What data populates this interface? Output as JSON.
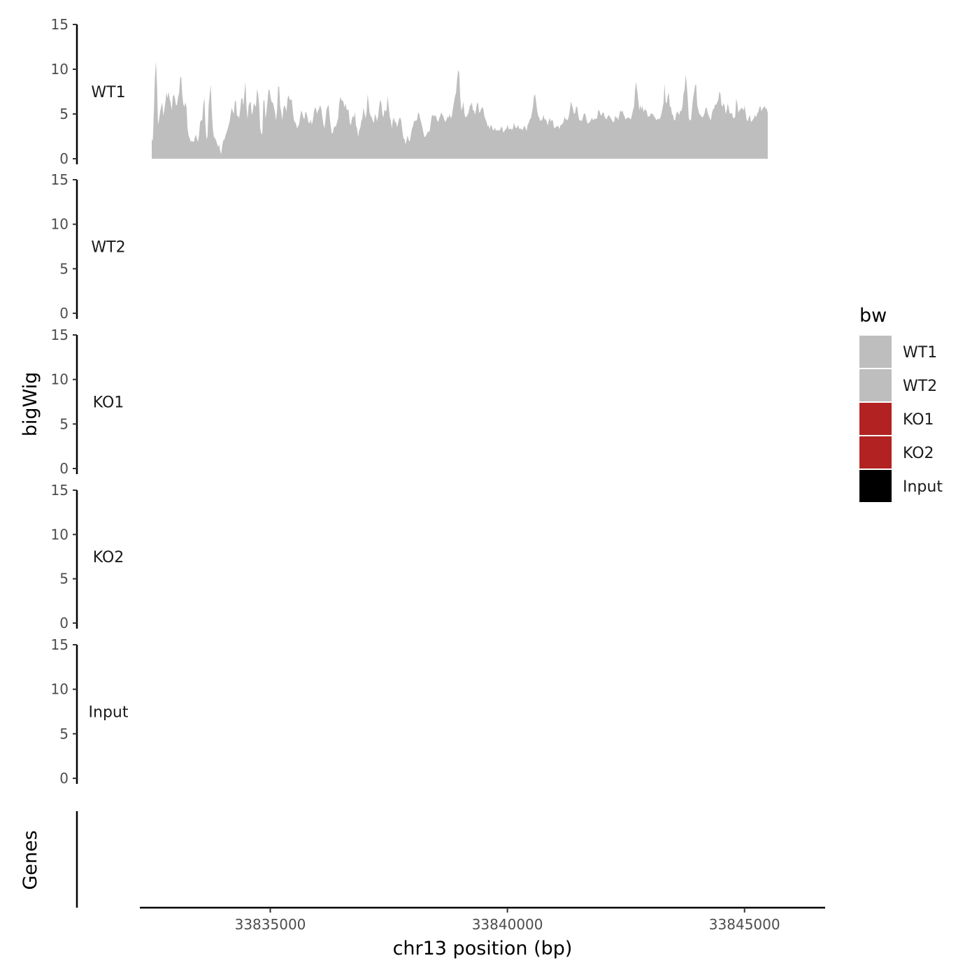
{
  "chart_data": {
    "type": "area",
    "chromosome": "chr13",
    "ylabel": "bigWig",
    "xlabel": "chr13 position (bp)",
    "genes_label": "Genes",
    "ylim": [
      0,
      15
    ],
    "yticks": [
      0,
      5,
      10,
      15
    ],
    "xlim": [
      33832250,
      33846700
    ],
    "xticks": [
      33835000,
      33840000,
      33845000
    ],
    "xtick_labels": [
      "33835000",
      "33840000",
      "33845000"
    ],
    "legend": {
      "title": "bw",
      "entries": [
        {
          "label": "WT1",
          "color": "#bebebe"
        },
        {
          "label": "WT2",
          "color": "#bebebe"
        },
        {
          "label": "KO1",
          "color": "#b22222"
        },
        {
          "label": "KO2",
          "color": "#b22222"
        },
        {
          "label": "Input",
          "color": "#000000"
        }
      ]
    },
    "series": [
      {
        "name": "WT1",
        "color": "#bebebe",
        "x_start": 33832500,
        "x_end": 33845490,
        "values": [
          2.2,
          2.0,
          5.2,
          9.0,
          10.9,
          8.3,
          3.8,
          4.4,
          5.3,
          5.8,
          6.3,
          4.8,
          5.5,
          6.3,
          7.4,
          6.8,
          7.5,
          6.7,
          6.2,
          5.4,
          6.9,
          7.2,
          6.8,
          6.0,
          6.0,
          6.9,
          7.3,
          9.0,
          9.2,
          7.2,
          6.1,
          5.8,
          6.3,
          5.8,
          3.4,
          2.6,
          2.3,
          1.9,
          2.0,
          1.9,
          1.9,
          2.4,
          2.7,
          2.2,
          1.9,
          2.7,
          4.1,
          4.3,
          4.3,
          6.0,
          6.8,
          3.7,
          2.2,
          2.5,
          5.9,
          7.1,
          8.3,
          5.4,
          3.4,
          2.5,
          2.3,
          2.1,
          1.7,
          1.3,
          1.6,
          0.9,
          0.5,
          1.5,
          2.1,
          2.1,
          2.6,
          2.9,
          3.3,
          3.7,
          4.2,
          5.0,
          5.7,
          5.3,
          5.0,
          6.5,
          6.4,
          4.8,
          4.8,
          4.5,
          5.5,
          6.7,
          6.8,
          5.9,
          7.3,
          8.6,
          5.8,
          4.4,
          5.9,
          6.3,
          6.3,
          4.9,
          5.3,
          6.2,
          6.0,
          5.8,
          7.8,
          7.2,
          6.0,
          3.4,
          2.8,
          2.8,
          6.4,
          6.6,
          4.5,
          5.2,
          6.5,
          7.8,
          7.6,
          6.8,
          6.3,
          6.3,
          5.8,
          5.2,
          4.3,
          5.4,
          8.0,
          8.1,
          5.8,
          5.2,
          4.3,
          5.6,
          6.0,
          5.7,
          5.3,
          6.7,
          7.1,
          6.6,
          6.6,
          6.6,
          5.3,
          4.3,
          4.1,
          3.9,
          3.4,
          3.6,
          3.9,
          4.7,
          5.4,
          5.1,
          4.6,
          4.4,
          5.3,
          5.1,
          4.6,
          4.0,
          4.0,
          4.4,
          3.8,
          4.3,
          5.2,
          5.7,
          5.6,
          5.0,
          5.4,
          5.6,
          6.0,
          5.6,
          4.7,
          3.9,
          3.4,
          4.3,
          5.5,
          5.8,
          6.0,
          4.6,
          3.6,
          2.8,
          2.9,
          3.5,
          3.6,
          3.6,
          4.1,
          4.5,
          6.1,
          6.9,
          6.6,
          6.5,
          6.4,
          5.7,
          6.2,
          5.5,
          5.5,
          5.4,
          4.1,
          3.7,
          4.4,
          4.8,
          4.6,
          5.2,
          3.7,
          3.4,
          2.4,
          3.2,
          3.4,
          4.2,
          4.5,
          5.7,
          5.1,
          4.5,
          5.2,
          7.2,
          6.2,
          5.1,
          4.8,
          4.6,
          4.2,
          4.0,
          5.0,
          4.7,
          4.2,
          4.7,
          5.8,
          6.6,
          6.2,
          5.0,
          4.6,
          5.5,
          5.3,
          5.4,
          7.0,
          5.9,
          4.7,
          4.3,
          3.4,
          4.3,
          4.6,
          4.1,
          4.1,
          3.5,
          4.0,
          4.5,
          4.6,
          4.2,
          3.1,
          2.3,
          2.2,
          1.6,
          2.1,
          2.6,
          2.1,
          1.9,
          2.6,
          3.3,
          3.6,
          4.1,
          4.3,
          4.2,
          4.4,
          5.2,
          5.0,
          4.4,
          4.0,
          3.5,
          2.9,
          2.4,
          2.5,
          2.7,
          3.0,
          3.0,
          3.1,
          4.0,
          4.8,
          4.9,
          4.7,
          4.9,
          4.7,
          4.3,
          4.1,
          4.5,
          4.8,
          5.2,
          4.9,
          4.7,
          4.3,
          4.1,
          4.4,
          4.7,
          4.6,
          5.0,
          4.5,
          4.8,
          5.6,
          6.3,
          7.0,
          7.4,
          8.9,
          9.9,
          9.6,
          6.8,
          5.4,
          5.7,
          6.4,
          5.0,
          4.6,
          4.7,
          4.9,
          5.2,
          5.9,
          6.0,
          6.3,
          5.4,
          5.4,
          4.9,
          5.5,
          6.3,
          6.1,
          5.1,
          5.3,
          5.6,
          5.8,
          5.5,
          4.7,
          4.4,
          4.1,
          3.6,
          3.7,
          3.3,
          3.8,
          3.6,
          3.2,
          3.2,
          3.5,
          3.1,
          3.2,
          3.2,
          3.1,
          3.3,
          3.6,
          3.4,
          2.9,
          3.1,
          3.3,
          3.4,
          3.8,
          3.3,
          3.3,
          3.4,
          3.2,
          3.4,
          4.0,
          3.6,
          3.4,
          3.5,
          3.8,
          3.3,
          3.4,
          3.3,
          3.2,
          3.5,
          3.7,
          3.4,
          3.1,
          3.8,
          4.0,
          4.4,
          4.5,
          5.1,
          5.8,
          7.0,
          7.2,
          6.4,
          5.4,
          4.8,
          4.6,
          4.2,
          4.3,
          4.4,
          4.9,
          4.4,
          4.4,
          4.2,
          3.7,
          4.2,
          4.6,
          4.1,
          4.4,
          4.2,
          3.5,
          3.4,
          3.6,
          3.6,
          3.7,
          3.3,
          3.7,
          3.8,
          3.9,
          4.1,
          4.7,
          4.4,
          4.4,
          4.3,
          4.7,
          5.4,
          6.4,
          6.0,
          5.6,
          5.0,
          5.1,
          5.8,
          5.8,
          4.9,
          4.3,
          4.3,
          4.2,
          4.4,
          4.9,
          5.1,
          4.9,
          4.3,
          3.9,
          4.0,
          4.1,
          4.3,
          4.6,
          4.3,
          4.4,
          4.5,
          4.4,
          4.6,
          5.4,
          5.4,
          5.0,
          4.8,
          5.1,
          5.2,
          4.7,
          4.5,
          4.4,
          4.7,
          4.9,
          4.7,
          4.5,
          4.3,
          4.1,
          4.1,
          4.8,
          4.6,
          4.6,
          4.3,
          4.9,
          5.4,
          5.2,
          5.4,
          5.0,
          4.7,
          4.4,
          4.5,
          4.6,
          4.6,
          4.5,
          4.4,
          4.9,
          5.4,
          5.8,
          7.7,
          8.6,
          7.6,
          6.6,
          5.4,
          6.0,
          5.5,
          5.9,
          5.2,
          5.5,
          5.5,
          5.3,
          4.7,
          4.7,
          4.8,
          5.1,
          5.0,
          5.0,
          4.7,
          4.6,
          4.3,
          4.4,
          4.5,
          4.4,
          4.6,
          5.0,
          5.6,
          6.2,
          8.4,
          6.3,
          6.2,
          7.0,
          7.4,
          5.8,
          5.8,
          5.0,
          4.9,
          4.3,
          4.3,
          5.0,
          5.3,
          5.1,
          4.9,
          5.4,
          5.3,
          5.9,
          7.3,
          7.7,
          9.4,
          8.4,
          6.7,
          4.5,
          4.3,
          4.3,
          5.5,
          6.7,
          7.4,
          8.2,
          8.3,
          6.0,
          5.5,
          5.0,
          4.9,
          4.7,
          4.6,
          4.8,
          5.1,
          5.7,
          5.7,
          5.1,
          4.8,
          4.5,
          4.3,
          5.1,
          5.5,
          5.6,
          6.1,
          6.0,
          6.3,
          6.6,
          7.5,
          7.3,
          6.0,
          5.8,
          6.2,
          5.9,
          5.0,
          5.4,
          6.2,
          5.6,
          5.0,
          5.1,
          5.1,
          4.6,
          4.5,
          4.7,
          6.7,
          6.2,
          5.1,
          5.4,
          5.5,
          5.7,
          5.6,
          5.4,
          5.9,
          5.1,
          4.3,
          4.2,
          4.6,
          4.9,
          4.1,
          4.2,
          4.4,
          4.6,
          4.9,
          4.6,
          5.1,
          5.2,
          5.7,
          5.9,
          5.3,
          5.6,
          5.7,
          5.9,
          5.6,
          5.6,
          5.1
        ]
      }
    ]
  }
}
